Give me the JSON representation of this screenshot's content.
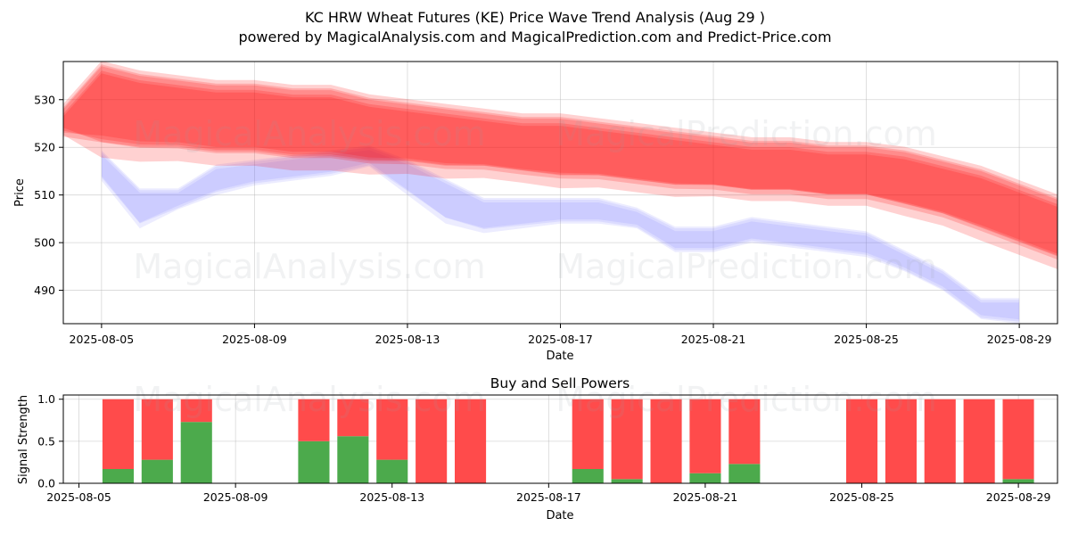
{
  "figure": {
    "title_line1": "KC HRW Wheat Futures (KE) Price Wave Trend Analysis (Aug 29 )",
    "title_line2": "powered by MagicalAnalysis.com and MagicalPrediction.com and Predict-Price.com",
    "watermarks": [
      "MagicalAnalysis.com",
      "MagicalPrediction.com"
    ]
  },
  "chart_data": [
    {
      "type": "area",
      "title": "",
      "xlabel": "Date",
      "ylabel": "Price",
      "grid": true,
      "xlim": [
        "2025-08-04",
        "2025-08-30"
      ],
      "ylim": [
        483,
        538
      ],
      "x_ticks": [
        "2025-08-05",
        "2025-08-09",
        "2025-08-13",
        "2025-08-17",
        "2025-08-21",
        "2025-08-25",
        "2025-08-29"
      ],
      "y_ticks": [
        490,
        500,
        510,
        520,
        530
      ],
      "colors": {
        "predicted_bands": "#ff0000",
        "historical_bands": "#6464ff"
      },
      "series": [
        {
          "kind": "historical",
          "x": [
            "2025-08-05",
            "2025-08-06",
            "2025-08-07",
            "2025-08-08",
            "2025-08-09",
            "2025-08-10",
            "2025-08-11",
            "2025-08-12",
            "2025-08-13",
            "2025-08-14",
            "2025-08-15",
            "2025-08-16",
            "2025-08-17",
            "2025-08-18",
            "2025-08-19",
            "2025-08-20",
            "2025-08-21",
            "2025-08-22",
            "2025-08-23",
            "2025-08-24",
            "2025-08-25",
            "2025-08-26",
            "2025-08-27",
            "2025-08-28",
            "2025-08-29"
          ],
          "upper": [
            519,
            511,
            511,
            516,
            517,
            518,
            519,
            520,
            517,
            513,
            509,
            509,
            509,
            509,
            507,
            503,
            503,
            505,
            504,
            503,
            502,
            498,
            494,
            488,
            488
          ],
          "lower": [
            513,
            503,
            507,
            510,
            512,
            513,
            514,
            516,
            510,
            504,
            502,
            503,
            504,
            504,
            503,
            498,
            498,
            500,
            499,
            498,
            497,
            494,
            490,
            484,
            483
          ]
        },
        {
          "kind": "predicted",
          "x": [
            "2025-08-04",
            "2025-08-05",
            "2025-08-06",
            "2025-08-07",
            "2025-08-08",
            "2025-08-09",
            "2025-08-10",
            "2025-08-11",
            "2025-08-12",
            "2025-08-13",
            "2025-08-14",
            "2025-08-15",
            "2025-08-16",
            "2025-08-17",
            "2025-08-18",
            "2025-08-19",
            "2025-08-20",
            "2025-08-21",
            "2025-08-22",
            "2025-08-23",
            "2025-08-24",
            "2025-08-25",
            "2025-08-26",
            "2025-08-27",
            "2025-08-28",
            "2025-08-29",
            "2025-08-30"
          ],
          "upper": [
            528,
            537,
            535,
            534,
            533,
            533,
            532,
            532,
            530,
            529,
            528,
            527,
            526,
            526,
            525,
            524,
            523,
            522,
            521,
            521,
            520,
            520,
            519,
            517,
            515,
            512,
            509
          ],
          "lower": [
            523,
            520,
            519,
            519,
            518,
            518,
            517,
            517,
            516,
            516,
            515,
            515,
            514,
            513,
            513,
            512,
            511,
            511,
            510,
            510,
            509,
            509,
            507,
            505,
            502,
            499,
            496
          ]
        }
      ]
    },
    {
      "type": "bar",
      "title": "Buy and Sell Powers",
      "xlabel": "Date",
      "ylabel": "Signal Strength",
      "grid": true,
      "xlim": [
        "2025-08-04.6",
        "2025-08-30"
      ],
      "ylim": [
        0,
        1.05
      ],
      "x_ticks": [
        "2025-08-05",
        "2025-08-09",
        "2025-08-13",
        "2025-08-17",
        "2025-08-21",
        "2025-08-25",
        "2025-08-29"
      ],
      "y_ticks": [
        "0.0",
        "0.5",
        "1.0"
      ],
      "colors": {
        "buy": "#4caa4c",
        "sell": "#ff4b4b"
      },
      "x": [
        "2025-08-06",
        "2025-08-07",
        "2025-08-08",
        "2025-08-11",
        "2025-08-12",
        "2025-08-13",
        "2025-08-14",
        "2025-08-15",
        "2025-08-18",
        "2025-08-19",
        "2025-08-20",
        "2025-08-21",
        "2025-08-22",
        "2025-08-25",
        "2025-08-26",
        "2025-08-27",
        "2025-08-28",
        "2025-08-29"
      ],
      "series": [
        {
          "name": "buy",
          "values": [
            0.17,
            0.28,
            0.73,
            0.5,
            0.56,
            0.28,
            0,
            0,
            0.17,
            0.05,
            0,
            0.12,
            0.23,
            0,
            0,
            0,
            0,
            0.05
          ]
        },
        {
          "name": "sell",
          "values": [
            0.83,
            0.72,
            0.27,
            0.5,
            0.44,
            0.72,
            1,
            1,
            0.83,
            0.95,
            1,
            0.88,
            0.77,
            1,
            1,
            1,
            1,
            0.95
          ]
        }
      ]
    }
  ]
}
